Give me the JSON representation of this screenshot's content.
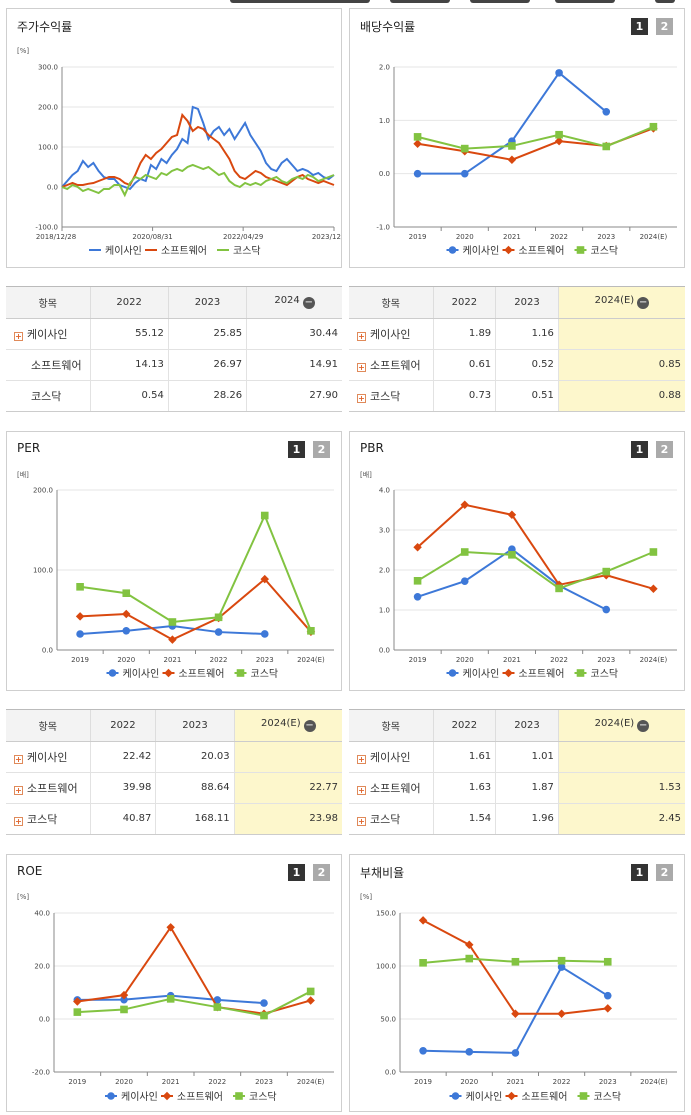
{
  "colors": {
    "keisaein": "#3d78d8",
    "software": "#d9480f",
    "kosdaq": "#82c341"
  },
  "legend": [
    "케이사인",
    "소프트웨어",
    "코스닥"
  ],
  "panels": {
    "stock": {
      "title": "주가수익률",
      "unit": "[%]",
      "yticks": [
        "300.0",
        "200.0",
        "100.0",
        "0.0",
        "-100.0"
      ],
      "xticks": [
        "2018/12/28",
        "2020/08/31",
        "2022/04/29",
        "2023/12/28"
      ]
    },
    "dividend": {
      "title": "배당수익률",
      "btn1": "1",
      "btn2": "2",
      "yticks": [
        "2.0",
        "1.0",
        "0.0",
        "-1.0"
      ],
      "xticks": [
        "2019",
        "2020",
        "2021",
        "2022",
        "2023",
        "2024(E)"
      ]
    },
    "per": {
      "title": "PER",
      "btn1": "1",
      "btn2": "2",
      "unit": "[배]",
      "yticks": [
        "200.0",
        "100.0",
        "0.0"
      ],
      "xticks": [
        "2019",
        "2020",
        "2021",
        "2022",
        "2023",
        "2024(E)"
      ]
    },
    "pbr": {
      "title": "PBR",
      "btn1": "1",
      "btn2": "2",
      "unit": "[배]",
      "yticks": [
        "4.0",
        "3.0",
        "2.0",
        "1.0",
        "0.0"
      ],
      "xticks": [
        "2019",
        "2020",
        "2021",
        "2022",
        "2023",
        "2024(E)"
      ]
    },
    "roe": {
      "title": "ROE",
      "btn1": "1",
      "btn2": "2",
      "unit": "[%]",
      "yticks": [
        "40.0",
        "20.0",
        "0.0",
        "-20.0"
      ],
      "xticks": [
        "2019",
        "2020",
        "2021",
        "2022",
        "2023",
        "2024(E)"
      ]
    },
    "debt": {
      "title": "부채비율",
      "btn1": "1",
      "btn2": "2",
      "unit": "[%]",
      "yticks": [
        "150.0",
        "100.0",
        "50.0",
        "0.0"
      ],
      "xticks": [
        "2019",
        "2020",
        "2021",
        "2022",
        "2023",
        "2024(E)"
      ]
    }
  },
  "tables": {
    "stock": {
      "headers": [
        "항목",
        "2022",
        "2023",
        "2024"
      ],
      "rows": [
        {
          "name": "케이사인",
          "plus": true,
          "vals": [
            "55.12",
            "25.85",
            "30.44"
          ]
        },
        {
          "name": "소프트웨어",
          "plus": false,
          "vals": [
            "14.13",
            "26.97",
            "14.91"
          ]
        },
        {
          "name": "코스닥",
          "plus": false,
          "vals": [
            "0.54",
            "28.26",
            "27.90"
          ]
        }
      ]
    },
    "dividend": {
      "headers": [
        "항목",
        "2022",
        "2023",
        "2024(E)"
      ],
      "rows": [
        {
          "name": "케이사인",
          "plus": true,
          "vals": [
            "1.89",
            "1.16",
            ""
          ]
        },
        {
          "name": "소프트웨어",
          "plus": true,
          "vals": [
            "0.61",
            "0.52",
            "0.85"
          ]
        },
        {
          "name": "코스닥",
          "plus": true,
          "vals": [
            "0.73",
            "0.51",
            "0.88"
          ]
        }
      ]
    },
    "per": {
      "headers": [
        "항목",
        "2022",
        "2023",
        "2024(E)"
      ],
      "rows": [
        {
          "name": "케이사인",
          "plus": true,
          "vals": [
            "22.42",
            "20.03",
            ""
          ]
        },
        {
          "name": "소프트웨어",
          "plus": true,
          "vals": [
            "39.98",
            "88.64",
            "22.77"
          ]
        },
        {
          "name": "코스닥",
          "plus": true,
          "vals": [
            "40.87",
            "168.11",
            "23.98"
          ]
        }
      ]
    },
    "pbr": {
      "headers": [
        "항목",
        "2022",
        "2023",
        "2024(E)"
      ],
      "rows": [
        {
          "name": "케이사인",
          "plus": true,
          "vals": [
            "1.61",
            "1.01",
            ""
          ]
        },
        {
          "name": "소프트웨어",
          "plus": true,
          "vals": [
            "1.63",
            "1.87",
            "1.53"
          ]
        },
        {
          "name": "코스닥",
          "plus": true,
          "vals": [
            "1.54",
            "1.96",
            "2.45"
          ]
        }
      ]
    }
  },
  "chart_data": [
    {
      "id": "stock",
      "type": "line",
      "title": "주가수익률",
      "ylim": [
        -100,
        300
      ],
      "series": [
        {
          "name": "케이사인",
          "values": [
            0,
            15,
            30,
            40,
            65,
            50,
            60,
            40,
            25,
            20,
            20,
            5,
            0,
            -5,
            10,
            20,
            15,
            55,
            45,
            70,
            60,
            80,
            95,
            120,
            110,
            200,
            195,
            160,
            120,
            140,
            150,
            130,
            145,
            120,
            140,
            160,
            130,
            110,
            90,
            60,
            45,
            40,
            60,
            70,
            55,
            40,
            45,
            40,
            30,
            35,
            25,
            20,
            30
          ]
        },
        {
          "name": "소프트웨어",
          "values": [
            0,
            5,
            10,
            5,
            5,
            8,
            10,
            15,
            20,
            25,
            25,
            20,
            10,
            5,
            30,
            60,
            80,
            70,
            85,
            95,
            110,
            125,
            130,
            180,
            165,
            140,
            150,
            145,
            130,
            120,
            110,
            90,
            70,
            40,
            25,
            20,
            30,
            40,
            35,
            25,
            20,
            15,
            10,
            5,
            15,
            25,
            30,
            20,
            15,
            10,
            15,
            10,
            5
          ]
        },
        {
          "name": "코스닥",
          "values": [
            0,
            -5,
            5,
            0,
            -10,
            -5,
            -10,
            -15,
            -5,
            -5,
            5,
            5,
            -20,
            10,
            25,
            20,
            30,
            25,
            20,
            35,
            30,
            40,
            45,
            40,
            50,
            55,
            50,
            45,
            50,
            40,
            30,
            35,
            15,
            5,
            0,
            10,
            5,
            10,
            5,
            15,
            20,
            25,
            15,
            10,
            20,
            25,
            20,
            30,
            25,
            15,
            20,
            25,
            30
          ]
        }
      ]
    },
    {
      "id": "dividend",
      "type": "line",
      "title": "배당수익률",
      "ylim": [
        -1,
        2
      ],
      "categories": [
        "2019",
        "2020",
        "2021",
        "2022",
        "2023",
        "2024(E)"
      ],
      "series": [
        {
          "name": "케이사인",
          "values": [
            0.0,
            0.0,
            0.61,
            1.89,
            1.16,
            null
          ]
        },
        {
          "name": "소프트웨어",
          "values": [
            0.56,
            0.42,
            0.26,
            0.61,
            0.52,
            0.85
          ]
        },
        {
          "name": "코스닥",
          "values": [
            0.69,
            0.47,
            0.52,
            0.73,
            0.51,
            0.88
          ]
        }
      ]
    },
    {
      "id": "per",
      "type": "line",
      "title": "PER",
      "ylim": [
        0,
        200
      ],
      "categories": [
        "2019",
        "2020",
        "2021",
        "2022",
        "2023",
        "2024(E)"
      ],
      "series": [
        {
          "name": "케이사인",
          "values": [
            20,
            24,
            30,
            22.42,
            20.03,
            null
          ]
        },
        {
          "name": "소프트웨어",
          "values": [
            42,
            45,
            13,
            39.98,
            88.64,
            22.77
          ]
        },
        {
          "name": "코스닥",
          "values": [
            79,
            71,
            35,
            40.87,
            168.11,
            23.98
          ]
        }
      ]
    },
    {
      "id": "pbr",
      "type": "line",
      "title": "PBR",
      "ylim": [
        0,
        4
      ],
      "categories": [
        "2019",
        "2020",
        "2021",
        "2022",
        "2023",
        "2024(E)"
      ],
      "series": [
        {
          "name": "케이사인",
          "values": [
            1.33,
            1.72,
            2.52,
            1.61,
            1.01,
            null
          ]
        },
        {
          "name": "소프트웨어",
          "values": [
            2.57,
            3.63,
            3.38,
            1.63,
            1.87,
            1.53
          ]
        },
        {
          "name": "코스닥",
          "values": [
            1.73,
            2.45,
            2.38,
            1.54,
            1.96,
            2.45
          ]
        }
      ]
    },
    {
      "id": "roe",
      "type": "line",
      "title": "ROE",
      "ylim": [
        -20,
        40
      ],
      "categories": [
        "2019",
        "2020",
        "2021",
        "2022",
        "2023",
        "2024(E)"
      ],
      "series": [
        {
          "name": "케이사인",
          "values": [
            7.2,
            7.3,
            8.8,
            7.2,
            6.0,
            null
          ]
        },
        {
          "name": "소프트웨어",
          "values": [
            6.6,
            9.0,
            34.6,
            4.5,
            2.0,
            7.0
          ]
        },
        {
          "name": "코스닥",
          "values": [
            2.6,
            3.6,
            7.6,
            4.5,
            1.3,
            10.4
          ]
        }
      ]
    },
    {
      "id": "debt",
      "type": "line",
      "title": "부채비율",
      "ylim": [
        0,
        150
      ],
      "categories": [
        "2019",
        "2020",
        "2021",
        "2022",
        "2023",
        "2024(E)"
      ],
      "series": [
        {
          "name": "케이사인",
          "values": [
            20,
            19,
            18,
            99,
            72,
            null
          ]
        },
        {
          "name": "소프트웨어",
          "values": [
            143,
            120,
            55,
            55,
            60,
            null
          ]
        },
        {
          "name": "코스닥",
          "values": [
            103,
            107,
            104,
            105,
            104,
            null
          ]
        }
      ]
    }
  ]
}
